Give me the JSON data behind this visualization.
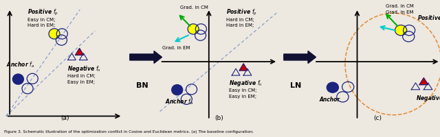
{
  "fig_width": 6.4,
  "fig_height": 2.01,
  "dpi": 100,
  "bg_color": "#ede8e0",
  "dark_blue": "#1a237e",
  "red_color": "#cc0000",
  "yellow_color": "#ffff00",
  "green_color": "#00aa00",
  "cyan_color": "#00cccc",
  "orange_color": "#e08020",
  "panel_labels": [
    "(a)",
    "(b)",
    "(c)"
  ],
  "bn_label": "BN",
  "ln_label": "LN",
  "caption": "Figure 3. Schematic illustration of the optimization conflict in Cosine and Euclidean metrics. (a) The baseline configuration;"
}
